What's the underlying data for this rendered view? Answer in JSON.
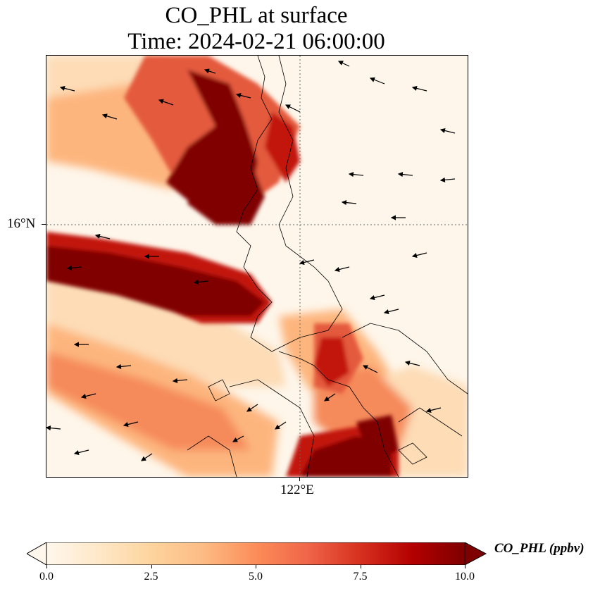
{
  "title": {
    "line1": "CO_PHL at surface",
    "line2": "Time: 2024-02-21 06:00:00"
  },
  "map": {
    "lat_tick_label": "16°N",
    "lon_tick_label": "122°E",
    "gridline_style": "dotted",
    "field_colors": [
      "#fef6ea",
      "#fddcb6",
      "#fdb57e",
      "#f58a5a",
      "#e45a3c",
      "#c2190a",
      "#800000"
    ]
  },
  "colorbar": {
    "label": "CO_PHL (ppbv)",
    "ticks": [
      "0.0",
      "2.5",
      "5.0",
      "7.5",
      "10.0"
    ],
    "min": 0,
    "max": 10,
    "extend": "both",
    "colormap": "OrRd",
    "stops": [
      "#fff7ec",
      "#fee8c8",
      "#fdd49e",
      "#fdbb84",
      "#fc8d59",
      "#ef6548",
      "#d7301f",
      "#b30000",
      "#7f0000"
    ]
  }
}
